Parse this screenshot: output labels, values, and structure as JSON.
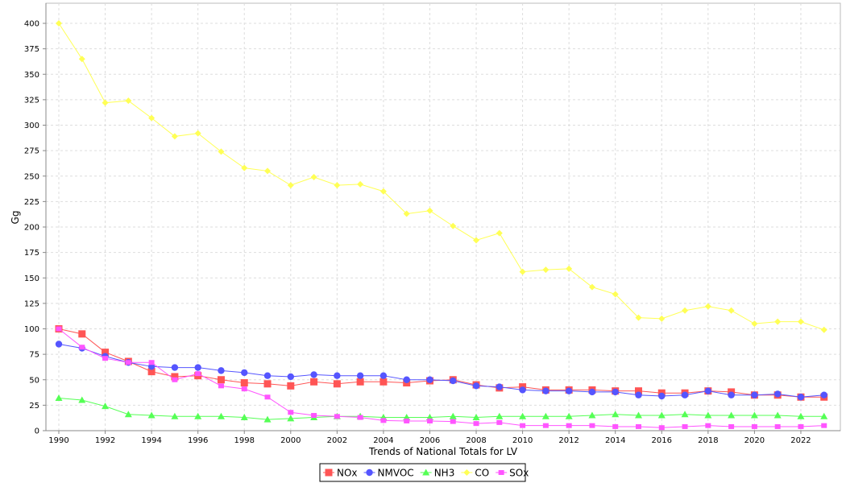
{
  "chart_data": {
    "type": "line",
    "title": "",
    "xlabel": "Trends of National Totals for LV",
    "ylabel": "Gg",
    "ylim": [
      0,
      420
    ],
    "yticks": [
      0,
      25,
      50,
      75,
      100,
      125,
      150,
      175,
      200,
      225,
      250,
      275,
      300,
      325,
      350,
      375,
      400
    ],
    "xticks": [
      1990,
      1992,
      1994,
      1996,
      1998,
      2000,
      2002,
      2004,
      2006,
      2008,
      2010,
      2012,
      2014,
      2016,
      2018,
      2020,
      2022
    ],
    "grid": true,
    "legend": "bottom",
    "x": [
      1990,
      1991,
      1992,
      1993,
      1994,
      1995,
      1996,
      1997,
      1998,
      1999,
      2000,
      2001,
      2002,
      2003,
      2004,
      2005,
      2006,
      2007,
      2008,
      2009,
      2010,
      2011,
      2012,
      2013,
      2014,
      2015,
      2016,
      2017,
      2018,
      2019,
      2020,
      2021,
      2022,
      2023
    ],
    "series": [
      {
        "name": "NOx",
        "color": "#ff5555",
        "marker": "square",
        "values": [
          100,
          95,
          77,
          68,
          58,
          53,
          54,
          50,
          47,
          46,
          44,
          48,
          46,
          48,
          48,
          47,
          49,
          50,
          45,
          42,
          43,
          40,
          40,
          40,
          39,
          39,
          37,
          37,
          39,
          38,
          35,
          35,
          33,
          33
        ]
      },
      {
        "name": "NMVOC",
        "color": "#5555ff",
        "marker": "circle",
        "values": [
          85,
          81,
          73,
          67,
          63,
          62,
          62,
          59,
          57,
          54,
          53,
          55,
          54,
          54,
          54,
          50,
          50,
          49,
          44,
          43,
          40,
          39,
          39,
          38,
          38,
          35,
          34,
          35,
          39,
          35,
          35,
          36,
          33,
          35
        ]
      },
      {
        "name": "NH3",
        "color": "#55ff55",
        "marker": "triangle",
        "values": [
          32,
          30,
          24,
          16,
          15,
          14,
          14,
          14,
          13,
          11,
          12,
          13,
          14,
          14,
          13,
          13,
          13,
          14,
          13,
          14,
          14,
          14,
          14,
          15,
          16,
          15,
          15,
          16,
          15,
          15,
          15,
          15,
          14,
          14
        ]
      },
      {
        "name": "CO",
        "color": "#ffff55",
        "marker": "diamond",
        "values": [
          400,
          365,
          322,
          324,
          307,
          289,
          292,
          274,
          258,
          255,
          241,
          249,
          241,
          242,
          235,
          213,
          216,
          201,
          187,
          194,
          156,
          158,
          159,
          141,
          134,
          111,
          110,
          118,
          122,
          118,
          105,
          107,
          107,
          99
        ]
      },
      {
        "name": "SOx",
        "color": "#ff55ff",
        "marker": "smallsquare",
        "values": [
          100,
          82,
          71,
          67,
          67,
          50,
          56,
          44,
          41,
          33,
          18,
          15,
          14,
          13,
          10,
          9.5,
          9.5,
          9,
          7,
          8,
          5,
          5,
          5,
          5,
          4,
          4,
          3,
          4,
          5,
          4,
          4,
          4,
          4,
          5
        ]
      }
    ]
  }
}
